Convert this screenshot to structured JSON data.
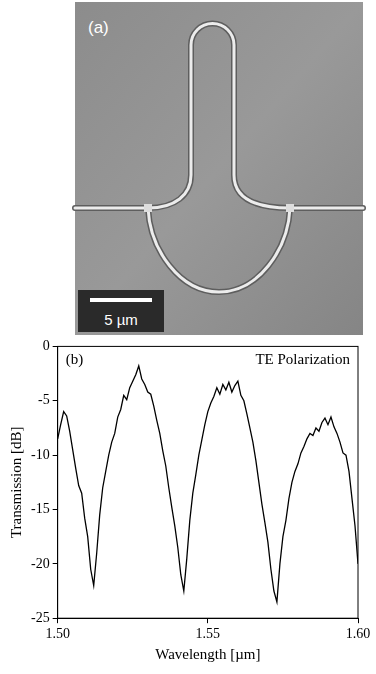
{
  "panel_a": {
    "label": "(a)",
    "scale_bar": "5 µm"
  },
  "chart_data": {
    "type": "line",
    "panel_label": "(b)",
    "annotation": "TE Polarization",
    "x_label": "Wavelength [µm]",
    "y_label": "Transmission [dB]",
    "color": "#000000",
    "grid": false,
    "xlim": [
      1.5,
      1.6
    ],
    "xticks": [
      {
        "value": 1.5,
        "label": "1.50"
      },
      {
        "value": 1.55,
        "label": "1.55"
      },
      {
        "value": 1.6,
        "label": "1.60"
      }
    ],
    "ylim": [
      -25,
      0
    ],
    "yticks": [
      -25,
      -20,
      -15,
      -10,
      -5,
      0
    ],
    "x": [
      1.5,
      1.501,
      1.502,
      1.503,
      1.504,
      1.505,
      1.506,
      1.507,
      1.508,
      1.509,
      1.51,
      1.511,
      1.512,
      1.513,
      1.514,
      1.515,
      1.516,
      1.517,
      1.518,
      1.519,
      1.52,
      1.521,
      1.522,
      1.523,
      1.524,
      1.525,
      1.526,
      1.527,
      1.528,
      1.529,
      1.53,
      1.531,
      1.532,
      1.533,
      1.534,
      1.535,
      1.536,
      1.537,
      1.538,
      1.539,
      1.54,
      1.541,
      1.542,
      1.543,
      1.544,
      1.545,
      1.546,
      1.547,
      1.548,
      1.549,
      1.55,
      1.551,
      1.552,
      1.553,
      1.554,
      1.555,
      1.556,
      1.557,
      1.558,
      1.559,
      1.56,
      1.561,
      1.562,
      1.563,
      1.564,
      1.565,
      1.566,
      1.567,
      1.568,
      1.569,
      1.57,
      1.571,
      1.572,
      1.573,
      1.574,
      1.575,
      1.576,
      1.577,
      1.578,
      1.579,
      1.58,
      1.581,
      1.582,
      1.583,
      1.584,
      1.585,
      1.586,
      1.587,
      1.588,
      1.589,
      1.59,
      1.591,
      1.592,
      1.593,
      1.594,
      1.595,
      1.596,
      1.597,
      1.598,
      1.599,
      1.6
    ],
    "values": [
      -8.5,
      -7.2,
      -6.0,
      -6.4,
      -7.8,
      -9.5,
      -11.2,
      -12.8,
      -13.5,
      -15.8,
      -17.5,
      -20.5,
      -22.0,
      -19.0,
      -15.5,
      -13.0,
      -11.5,
      -10.0,
      -8.8,
      -8.0,
      -6.5,
      -5.8,
      -4.5,
      -4.9,
      -3.8,
      -3.2,
      -2.6,
      -1.8,
      -3.0,
      -3.5,
      -4.2,
      -4.4,
      -5.5,
      -6.8,
      -8.0,
      -9.6,
      -11.0,
      -13.0,
      -14.8,
      -16.5,
      -18.5,
      -21.0,
      -22.5,
      -19.5,
      -16.0,
      -13.5,
      -11.8,
      -10.0,
      -8.6,
      -7.2,
      -6.0,
      -5.2,
      -4.6,
      -3.8,
      -4.4,
      -3.5,
      -4.0,
      -3.3,
      -4.2,
      -3.6,
      -3.2,
      -4.5,
      -5.0,
      -6.2,
      -7.5,
      -8.8,
      -10.5,
      -12.5,
      -14.5,
      -16.2,
      -18.0,
      -20.5,
      -22.5,
      -23.5,
      -20.0,
      -17.5,
      -16.0,
      -14.0,
      -12.5,
      -11.5,
      -10.8,
      -9.8,
      -9.2,
      -8.5,
      -8.0,
      -8.2,
      -7.5,
      -7.8,
      -7.0,
      -6.6,
      -7.2,
      -6.5,
      -7.4,
      -8.0,
      -8.8,
      -9.8,
      -10.0,
      -11.5,
      -14.0,
      -16.5,
      -20.0
    ]
  }
}
